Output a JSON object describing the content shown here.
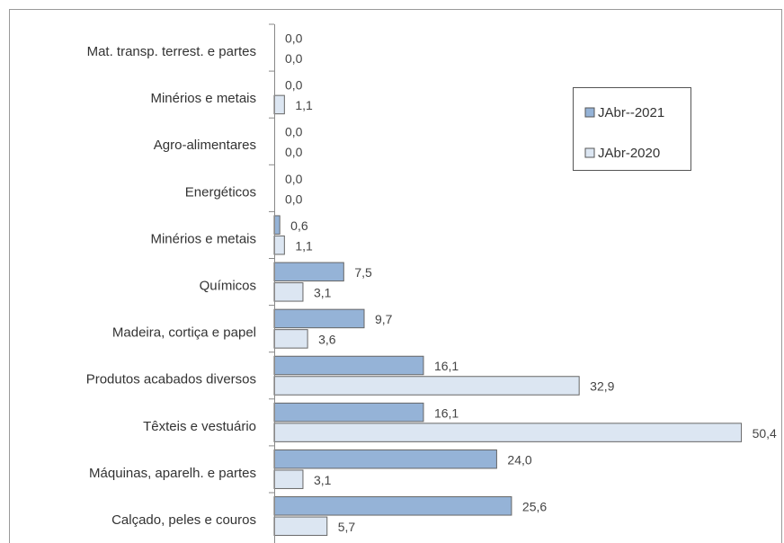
{
  "chart_data": {
    "type": "bar",
    "orientation": "horizontal",
    "categories": [
      "Mat. transp. terrest. e partes",
      "Minérios e metais",
      "Agro-alimentares",
      "Energéticos",
      "Minérios e metais",
      "Químicos",
      "Madeira, cortiça e papel",
      "Produtos acabados diversos",
      "Têxteis e vestuário",
      "Máquinas, aparelh. e partes",
      "Calçado, peles e couros"
    ],
    "series": [
      {
        "name": "JAbr--2021",
        "color": "#95b3d7",
        "values": [
          0,
          0,
          0,
          0,
          0.6,
          7.5,
          9.7,
          16.1,
          16.1,
          24.0,
          25.6
        ],
        "value_labels": [
          "0,0",
          "0,0",
          "0,0",
          "0,0",
          "0,6",
          "7,5",
          "9,7",
          "16,1",
          "16,1",
          "24,0",
          "25,6"
        ]
      },
      {
        "name": "JAbr-2020",
        "color": "#dce6f2",
        "values": [
          0,
          1.1,
          0,
          0,
          1.1,
          3.1,
          3.6,
          32.9,
          50.4,
          3.1,
          5.7
        ],
        "value_labels": [
          "0,0",
          "1,1",
          "0,0",
          "0,0",
          "1,1",
          "3,1",
          "3,6",
          "32,9",
          "50,4",
          "3,1",
          "5,7"
        ]
      }
    ],
    "xlim": [
      0,
      55
    ],
    "legend": "upper right"
  }
}
